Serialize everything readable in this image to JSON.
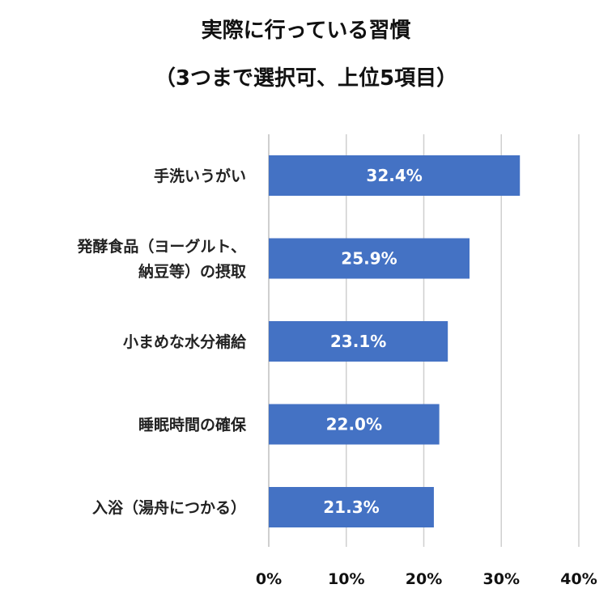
{
  "chart_data": {
    "type": "bar",
    "orientation": "horizontal",
    "title": [
      "実際に行っている習慣",
      "（3つまで選択可、上位5項目）"
    ],
    "categories": [
      [
        "手洗いうがい"
      ],
      [
        "発酵食品（ヨーグルト、",
        "納豆等）の摂取"
      ],
      [
        "小まめな水分補給"
      ],
      [
        "睡眠時間の確保"
      ],
      [
        "入浴（湯舟につかる）"
      ]
    ],
    "values": [
      32.4,
      25.9,
      23.1,
      22.0,
      21.3
    ],
    "data_labels": [
      "32.4%",
      "25.9%",
      "23.1%",
      "22.0%",
      "21.3%"
    ],
    "xlim": [
      0,
      40
    ],
    "xticks": [
      0,
      10,
      20,
      30,
      40
    ],
    "xtick_labels": [
      "0%",
      "10%",
      "20%",
      "30%",
      "40%"
    ],
    "grid": true,
    "bar_color": "#4472C4"
  }
}
